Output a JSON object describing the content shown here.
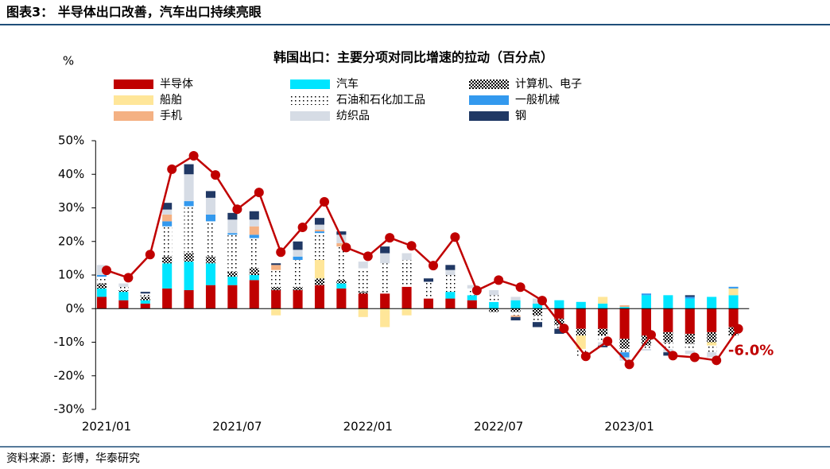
{
  "header": "图表3： 半导体出口改善，汽车出口持续亮眼",
  "source": "资料来源：彭博，华泰研究",
  "chart_data": {
    "type": "stacked-bar-line",
    "title": "韩国出口：主要分项对同比增速的拉动（百分点）",
    "y_unit": "%",
    "categories": [
      "2021/01",
      null,
      null,
      null,
      null,
      null,
      "2021/07",
      null,
      null,
      null,
      null,
      null,
      "2022/01",
      null,
      null,
      null,
      null,
      null,
      "2022/07",
      null,
      null,
      null,
      null,
      null,
      "2023/01",
      null,
      null,
      null,
      null,
      null
    ],
    "ylim": [
      -30,
      50
    ],
    "yticks": [
      {
        "value": -30,
        "label": "-30%"
      },
      {
        "value": -20,
        "label": "-20%"
      },
      {
        "value": -10,
        "label": "-10%"
      },
      {
        "value": 0,
        "label": "0%"
      },
      {
        "value": 10,
        "label": "10%"
      },
      {
        "value": 20,
        "label": "20%"
      },
      {
        "value": 30,
        "label": "30%"
      },
      {
        "value": 40,
        "label": "40%"
      },
      {
        "value": 50,
        "label": "50%"
      }
    ],
    "series": [
      {
        "name": "半导体",
        "color": "#c00000",
        "values": [
          3.5,
          2.5,
          1.5,
          6,
          5.5,
          7,
          7,
          8.5,
          5.5,
          5.5,
          7,
          6,
          4.5,
          4.5,
          6.5,
          3,
          3,
          2.5,
          0,
          0,
          0,
          -3,
          -6,
          -6,
          -9,
          -8,
          -7,
          -7.5,
          -7,
          -5.5
        ]
      },
      {
        "name": "汽车",
        "color": "#00e5ff",
        "values": [
          2.5,
          2.5,
          1,
          7.5,
          8.5,
          6.5,
          2.5,
          1.5,
          0,
          0,
          0,
          1.5,
          0,
          0,
          0,
          0,
          2,
          1.5,
          2,
          2.5,
          1.5,
          2.5,
          2,
          1.5,
          0.5,
          4,
          4,
          3,
          3.5,
          4
        ]
      },
      {
        "name": "计算机、电子",
        "color": "#000000",
        "pattern": "checker",
        "values": [
          1.5,
          0.5,
          1,
          2,
          2.5,
          2,
          1.5,
          2,
          1,
          1,
          2,
          1,
          0.5,
          0,
          0,
          0,
          0,
          0,
          -1,
          -1,
          -2,
          -2,
          -2,
          -2,
          -3,
          -3,
          -3,
          -3,
          -3,
          -2.5
        ]
      },
      {
        "name": "船舶",
        "color": "#ffe699",
        "values": [
          0,
          0,
          0,
          0,
          0,
          0,
          0,
          0,
          -2,
          0,
          5.5,
          0,
          -2.5,
          -5.5,
          -2,
          0,
          0,
          0,
          0,
          0,
          0,
          0,
          -4,
          2,
          0,
          0,
          0,
          0,
          -1,
          2
        ]
      },
      {
        "name": "石油和石化加工品",
        "color": "#000000",
        "pattern": "dots",
        "values": [
          2,
          1,
          1,
          9,
          14,
          10.5,
          11,
          9,
          5,
          8,
          8,
          10,
          7,
          9,
          8,
          5,
          5,
          2,
          2,
          -1,
          -2,
          -1,
          -2,
          -2,
          -1,
          -1,
          -2,
          -2,
          -2,
          0
        ]
      },
      {
        "name": "一般机械",
        "color": "#3399ee",
        "values": [
          0.5,
          0,
          0,
          1.5,
          1.5,
          2,
          0.5,
          1,
          0,
          1,
          0.5,
          0,
          0,
          0,
          0,
          0,
          0,
          0,
          0,
          0,
          0,
          0,
          0,
          0,
          -1.5,
          0.5,
          0,
          0.5,
          0,
          0.5
        ]
      },
      {
        "name": "手机",
        "color": "#f4b183",
        "values": [
          0,
          0,
          0,
          2,
          0,
          0,
          0,
          2.5,
          1.5,
          0,
          0.5,
          1,
          0,
          0,
          0,
          0,
          0,
          0,
          0,
          -0.5,
          0,
          0,
          0,
          0,
          0.5,
          0,
          0,
          0,
          0,
          0
        ]
      },
      {
        "name": "纺织品",
        "color": "#d6dce5",
        "values": [
          3,
          1,
          0,
          1.5,
          8,
          5,
          4,
          2,
          0,
          2,
          1.5,
          2.5,
          2,
          3,
          2,
          0,
          1.5,
          1,
          1.5,
          1,
          1.5,
          0,
          0,
          -1,
          -1,
          -0.5,
          -1,
          -1,
          -1.5,
          0
        ]
      },
      {
        "name": "钢",
        "color": "#203864",
        "values": [
          0,
          0,
          0.5,
          2,
          3,
          2,
          2,
          2.5,
          0.5,
          2.5,
          2,
          1,
          0,
          2,
          0,
          1,
          1.5,
          0,
          0,
          -1,
          -1.5,
          -1.5,
          0,
          -0.5,
          0,
          0,
          -1,
          0.5,
          0,
          0
        ]
      }
    ],
    "line": {
      "color": "#c00000",
      "values": [
        11.4,
        9.2,
        16.1,
        41.5,
        45.5,
        39.8,
        29.6,
        34.6,
        16.8,
        24.2,
        31.8,
        18.2,
        15.6,
        21.1,
        18.7,
        12.8,
        21.3,
        5.4,
        8.5,
        6.4,
        2.4,
        -5.9,
        -14.2,
        -9.7,
        -16.6,
        -7.8,
        -14.0,
        -14.5,
        -15.4,
        -6.0
      ],
      "last_label": "-6.0%"
    }
  }
}
